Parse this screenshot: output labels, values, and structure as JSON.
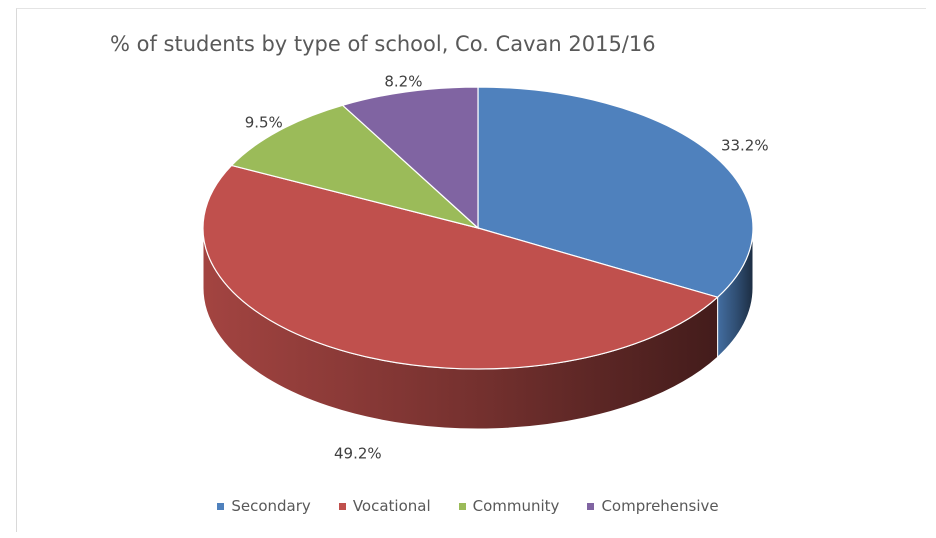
{
  "chart_data": {
    "type": "pie",
    "title": "% of students by type of school, Co. Cavan 2015/16",
    "categories": [
      "Secondary",
      "Vocational",
      "Community",
      "Comprehensive"
    ],
    "values": [
      33.2,
      49.2,
      9.5,
      8.2
    ],
    "data_labels": [
      "33.2%",
      "49.2%",
      "9.5%",
      "8.2%"
    ],
    "colors": [
      "#4f81bd",
      "#c0504d",
      "#9bbb59",
      "#8064a2"
    ],
    "legend_position": "bottom",
    "style": "3d"
  }
}
